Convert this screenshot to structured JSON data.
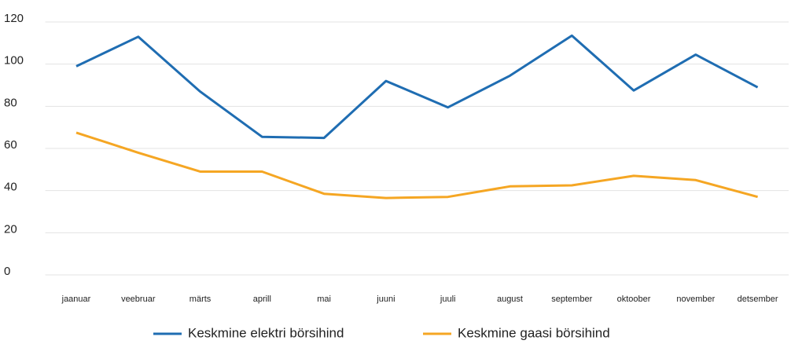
{
  "chart_data": {
    "type": "line",
    "categories": [
      "jaanuar",
      "veebruar",
      "märts",
      "aprill",
      "mai",
      "juuni",
      "juuli",
      "august",
      "september",
      "oktoober",
      "november",
      "detsember"
    ],
    "series": [
      {
        "name": "Keskmine elektri börsihind",
        "color": "#1f6db2",
        "values": [
          99,
          113,
          87,
          65.5,
          65,
          92,
          79.5,
          94.5,
          113.5,
          87.5,
          104.5,
          89
        ]
      },
      {
        "name": "Keskmine gaasi börsihind",
        "color": "#f5a623",
        "values": [
          67.5,
          58,
          49,
          49,
          38.5,
          36.5,
          37,
          42,
          42.5,
          47,
          45,
          37
        ]
      }
    ],
    "ylim": [
      0,
      120
    ],
    "yticks": [
      0,
      20,
      40,
      60,
      80,
      100,
      120
    ],
    "grid": true,
    "legend": "bottom"
  }
}
